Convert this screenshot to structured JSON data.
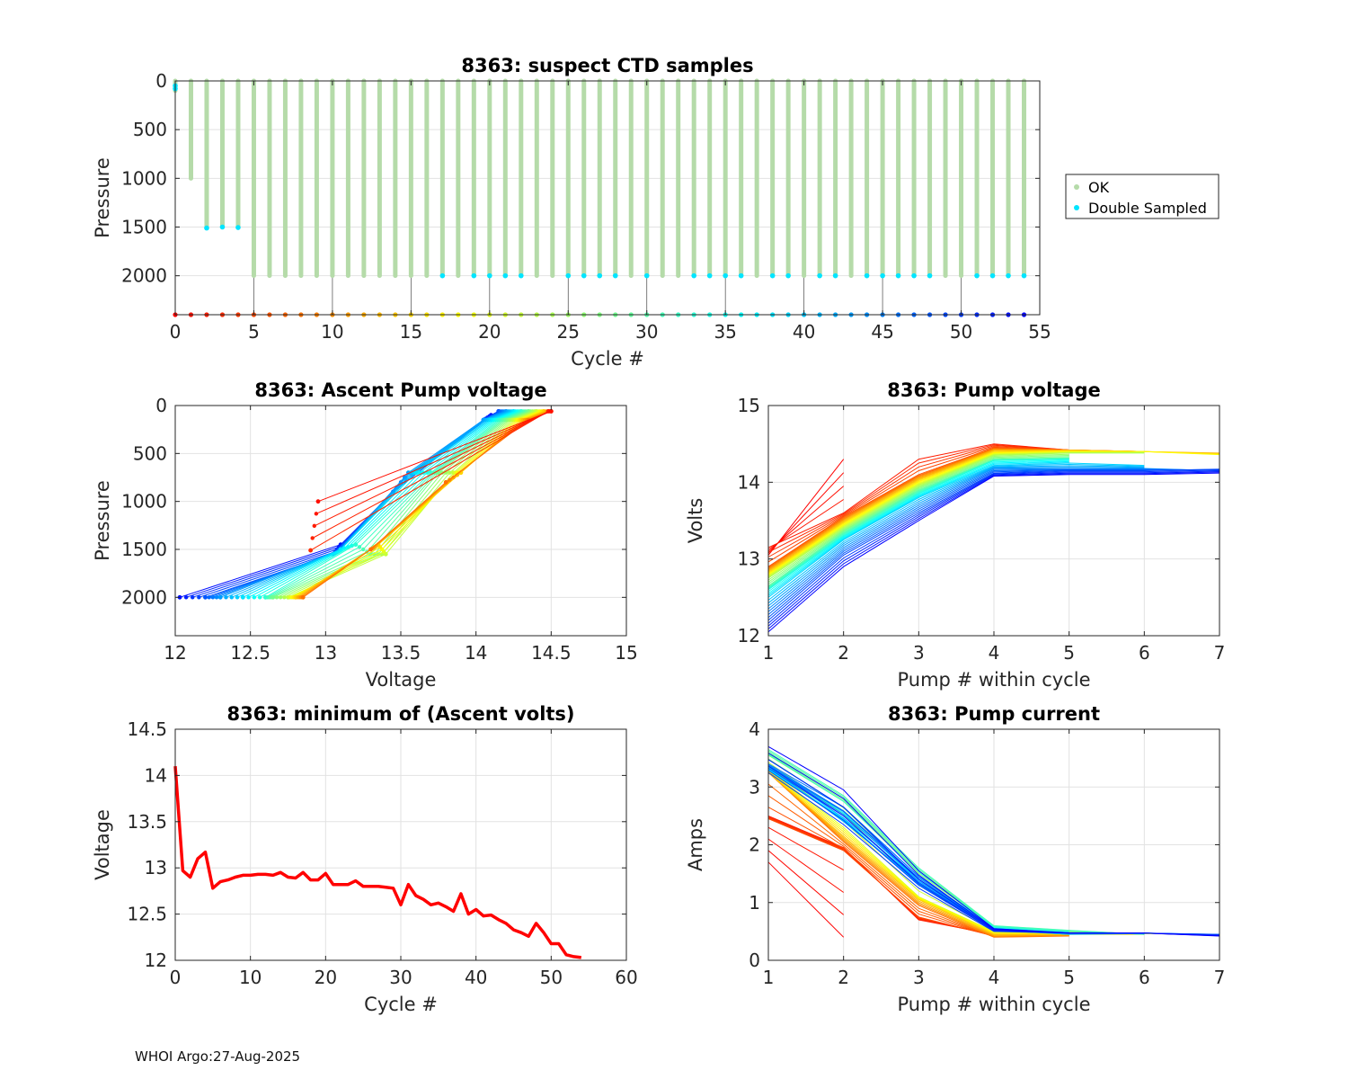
{
  "footer": "WHOI Argo:27-Aug-2025",
  "colors": {
    "ok": "#b5dba9",
    "double": "#00e5ff",
    "minv": "#ff0000",
    "grid": "#e2e2e2",
    "axis": "#262626"
  },
  "chart_data": [
    {
      "id": "ctd",
      "type": "scatter",
      "title": "8363: suspect CTD samples",
      "xlabel": "Cycle #",
      "ylabel": "Pressure",
      "xlim": [
        0,
        55
      ],
      "ylim": [
        0,
        2400
      ],
      "y_reversed": true,
      "xticks": [
        0,
        5,
        10,
        15,
        20,
        25,
        30,
        35,
        40,
        45,
        50,
        55
      ],
      "yticks": [
        0,
        500,
        1000,
        1500,
        2000
      ],
      "legend": [
        "OK",
        "Double Sampled"
      ],
      "legend_position": "outside-right",
      "profile_max_pressure": [
        100,
        1000,
        1500,
        1500,
        1500,
        2000,
        2000,
        2000,
        2000,
        2000,
        2000,
        2000,
        2000,
        2000,
        2000,
        2000,
        2000,
        2000,
        2000,
        2000,
        2000,
        2000,
        2000,
        2000,
        2000,
        2000,
        2000,
        2000,
        2000,
        2000,
        2000,
        2000,
        2000,
        2000,
        2000,
        2000,
        2000,
        2000,
        2000,
        2000,
        2000,
        2000,
        2000,
        2000,
        2000,
        2000,
        2000,
        2000,
        2000,
        2000,
        2000,
        2000,
        2000,
        2000,
        2000
      ],
      "double_sampled": [
        [
          0,
          50
        ],
        [
          0,
          80
        ],
        [
          2,
          1510
        ],
        [
          3,
          1500
        ],
        [
          4,
          1505
        ],
        [
          17,
          2000
        ],
        [
          19,
          2000
        ],
        [
          20,
          2000
        ],
        [
          21,
          2000
        ],
        [
          22,
          2000
        ],
        [
          25,
          2000
        ],
        [
          26,
          2000
        ],
        [
          27,
          2000
        ],
        [
          28,
          2000
        ],
        [
          30,
          2000
        ],
        [
          33,
          2000
        ],
        [
          34,
          2000
        ],
        [
          35,
          2000
        ],
        [
          36,
          2000
        ],
        [
          38,
          2000
        ],
        [
          39,
          2000
        ],
        [
          41,
          2000
        ],
        [
          42,
          2000
        ],
        [
          44,
          2000
        ],
        [
          45,
          2000
        ],
        [
          46,
          2000
        ],
        [
          47,
          2000
        ],
        [
          48,
          2000
        ],
        [
          51,
          2000
        ],
        [
          52,
          2000
        ],
        [
          53,
          2000
        ],
        [
          54,
          2000
        ]
      ],
      "cycle_marker_pressure": 2400,
      "cycle_stem_every": 5
    },
    {
      "id": "asc",
      "type": "line",
      "title": "8363: Ascent Pump voltage",
      "xlabel": "Voltage",
      "ylabel": "Pressure",
      "xlim": [
        12,
        15
      ],
      "ylim": [
        0,
        2400
      ],
      "y_reversed": true,
      "xticks": [
        12,
        12.5,
        13,
        13.5,
        14,
        14.5,
        15
      ],
      "yticks": [
        0,
        500,
        1000,
        1500,
        2000
      ],
      "profiles": [
        {
          "cycle": 1,
          "points": [
            [
              12.95,
              1000
            ],
            [
              14.5,
              60
            ]
          ]
        },
        {
          "cycle": 3,
          "points": [
            [
              12.9,
              1510
            ],
            [
              14.48,
              60
            ]
          ]
        },
        {
          "cycle": 8,
          "points": [
            [
              12.85,
              2000
            ],
            [
              13.3,
              1500
            ],
            [
              13.8,
              800
            ],
            [
              14.35,
              150
            ],
            [
              14.5,
              60
            ]
          ]
        },
        {
          "cycle": 15,
          "points": [
            [
              12.8,
              2000
            ],
            [
              13.35,
              1450
            ],
            [
              13.9,
              700
            ],
            [
              14.3,
              150
            ],
            [
              14.45,
              60
            ]
          ]
        },
        {
          "cycle": 22,
          "points": [
            [
              12.75,
              2000
            ],
            [
              13.4,
              1550
            ],
            [
              13.85,
              700
            ],
            [
              14.25,
              150
            ],
            [
              14.4,
              60
            ]
          ]
        },
        {
          "cycle": 28,
          "points": [
            [
              12.65,
              2000
            ],
            [
              13.3,
              1550
            ],
            [
              13.75,
              700
            ],
            [
              14.2,
              150
            ],
            [
              14.35,
              60
            ]
          ]
        },
        {
          "cycle": 33,
          "points": [
            [
              12.6,
              2000
            ],
            [
              13.2,
              1450
            ],
            [
              13.7,
              700
            ],
            [
              14.15,
              150
            ],
            [
              14.3,
              60
            ]
          ]
        },
        {
          "cycle": 38,
          "points": [
            [
              12.45,
              2000
            ],
            [
              13.1,
              1500
            ],
            [
              13.6,
              700
            ],
            [
              14.1,
              150
            ],
            [
              14.25,
              60
            ]
          ]
        },
        {
          "cycle": 43,
          "points": [
            [
              12.3,
              2000
            ],
            [
              13.1,
              1500
            ],
            [
              13.55,
              700
            ],
            [
              14.05,
              150
            ],
            [
              14.2,
              60
            ]
          ]
        },
        {
          "cycle": 48,
          "points": [
            [
              12.2,
              2000
            ],
            [
              13.05,
              1550
            ],
            [
              13.45,
              900
            ],
            [
              14.05,
              150
            ],
            [
              14.15,
              60
            ]
          ]
        },
        {
          "cycle": 53,
          "points": [
            [
              12.03,
              2000
            ],
            [
              13.1,
              1450
            ],
            [
              13.45,
              900
            ],
            [
              14.1,
              100
            ],
            [
              14.15,
              60
            ]
          ]
        }
      ]
    },
    {
      "id": "pv",
      "type": "line",
      "title": "8363: Pump voltage",
      "xlabel": "Pump # within cycle",
      "ylabel": "Volts",
      "xlim": [
        1,
        7
      ],
      "ylim": [
        12,
        15
      ],
      "xticks": [
        1,
        2,
        3,
        4,
        5,
        6,
        7
      ],
      "yticks": [
        12,
        13,
        14,
        15
      ],
      "series": [
        {
          "cycle": 0,
          "values": [
            13.05,
            14.3
          ]
        },
        {
          "cycle": 2,
          "values": [
            13.15,
            13.6,
            14.3,
            14.5,
            14.42
          ]
        },
        {
          "cycle": 6,
          "values": [
            12.9,
            13.55,
            14.1,
            14.45,
            14.42,
            14.4
          ]
        },
        {
          "cycle": 12,
          "values": [
            12.85,
            13.5,
            14.05,
            14.42,
            14.42,
            14.4,
            14.38
          ]
        },
        {
          "cycle": 18,
          "values": [
            12.8,
            13.45,
            14.0,
            14.38,
            14.4,
            14.4,
            14.36
          ]
        },
        {
          "cycle": 24,
          "values": [
            12.75,
            13.4,
            13.95,
            14.35,
            14.38,
            14.38
          ]
        },
        {
          "cycle": 29,
          "values": [
            12.65,
            13.35,
            13.9,
            14.3,
            14.32
          ]
        },
        {
          "cycle": 34,
          "values": [
            12.6,
            13.3,
            13.85,
            14.28,
            14.3
          ]
        },
        {
          "cycle": 39,
          "values": [
            12.5,
            13.25,
            13.8,
            14.22,
            14.25,
            14.22
          ]
        },
        {
          "cycle": 44,
          "values": [
            12.35,
            13.15,
            13.7,
            14.18,
            14.18,
            14.18,
            14.15
          ]
        },
        {
          "cycle": 49,
          "values": [
            12.2,
            13.05,
            13.6,
            14.12,
            14.15,
            14.15,
            14.17
          ]
        },
        {
          "cycle": 54,
          "values": [
            12.05,
            12.9,
            13.5,
            14.08,
            14.1,
            14.1,
            14.12
          ]
        }
      ]
    },
    {
      "id": "minv",
      "type": "line",
      "title": "8363: minimum of (Ascent volts)",
      "xlabel": "Cycle #",
      "ylabel": "Voltage",
      "xlim": [
        0,
        60
      ],
      "ylim": [
        12,
        14.5
      ],
      "xticks": [
        0,
        10,
        20,
        30,
        40,
        50,
        60
      ],
      "yticks": [
        12,
        12.5,
        13,
        13.5,
        14,
        14.5
      ],
      "x": [
        0,
        1,
        2,
        3,
        4,
        5,
        6,
        7,
        8,
        9,
        10,
        11,
        12,
        13,
        14,
        15,
        16,
        17,
        18,
        19,
        20,
        21,
        22,
        23,
        24,
        25,
        26,
        27,
        28,
        29,
        30,
        31,
        32,
        33,
        34,
        35,
        36,
        37,
        38,
        39,
        40,
        41,
        42,
        43,
        44,
        45,
        46,
        47,
        48,
        49,
        50,
        51,
        52,
        53,
        54
      ],
      "values": [
        14.1,
        12.97,
        12.9,
        13.1,
        13.17,
        12.78,
        12.85,
        12.87,
        12.9,
        12.92,
        12.92,
        12.93,
        12.93,
        12.92,
        12.95,
        12.9,
        12.89,
        12.95,
        12.87,
        12.87,
        12.94,
        12.82,
        12.82,
        12.82,
        12.86,
        12.8,
        12.8,
        12.8,
        12.79,
        12.78,
        12.6,
        12.82,
        12.7,
        12.66,
        12.6,
        12.62,
        12.58,
        12.53,
        12.72,
        12.5,
        12.55,
        12.48,
        12.49,
        12.44,
        12.4,
        12.33,
        12.3,
        12.26,
        12.4,
        12.3,
        12.18,
        12.18,
        12.06,
        12.04,
        12.03
      ]
    },
    {
      "id": "pc",
      "type": "line",
      "title": "8363: Pump current",
      "xlabel": "Pump # within cycle",
      "ylabel": "Amps",
      "xlim": [
        1,
        7
      ],
      "ylim": [
        0,
        4
      ],
      "xticks": [
        1,
        2,
        3,
        4,
        5,
        6,
        7
      ],
      "yticks": [
        0,
        1,
        2,
        3,
        4
      ],
      "series": [
        {
          "cycle": 0,
          "values": [
            1.7,
            0.4
          ]
        },
        {
          "cycle": 2,
          "values": [
            2.5,
            1.95,
            0.7,
            0.45
          ]
        },
        {
          "cycle": 5,
          "values": [
            2.45,
            1.9,
            0.75,
            0.42
          ]
        },
        {
          "cycle": 8,
          "values": [
            3.25,
            2.05,
            0.95,
            0.4,
            0.42
          ]
        },
        {
          "cycle": 14,
          "values": [
            3.25,
            2.15,
            1.05,
            0.45,
            0.45,
            0.45
          ]
        },
        {
          "cycle": 20,
          "values": [
            3.3,
            2.3,
            1.1,
            0.5,
            0.47,
            0.46,
            0.45
          ]
        },
        {
          "cycle": 26,
          "values": [
            3.55,
            2.75,
            1.5,
            0.58,
            0.5,
            0.45
          ]
        },
        {
          "cycle": 31,
          "values": [
            3.65,
            2.85,
            1.6,
            0.6,
            0.52,
            0.45
          ]
        },
        {
          "cycle": 36,
          "values": [
            3.3,
            2.45,
            1.3,
            0.55,
            0.45
          ]
        },
        {
          "cycle": 41,
          "values": [
            3.35,
            2.4,
            1.35,
            0.52,
            0.45,
            0.46
          ]
        },
        {
          "cycle": 46,
          "values": [
            3.4,
            2.65,
            1.45,
            0.55,
            0.48,
            0.47,
            0.45
          ]
        },
        {
          "cycle": 50,
          "values": [
            3.25,
            2.35,
            1.25,
            0.5,
            0.47,
            0.47,
            0.44
          ]
        },
        {
          "cycle": 54,
          "values": [
            3.7,
            2.95,
            1.55,
            0.55,
            0.47,
            0.47,
            0.42
          ]
        }
      ]
    }
  ]
}
